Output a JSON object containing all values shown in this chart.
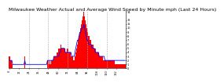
{
  "title": "Milwaukee Weather Actual and Average Wind Speed by Minute mph (Last 24 Hours)",
  "ylim": [
    0,
    14
  ],
  "bar_color": "#ff0000",
  "line_color": "#0000ff",
  "background_color": "#ffffff",
  "plot_bg_color": "#ffffff",
  "n_points": 144,
  "actual_wind": [
    3,
    2,
    2,
    1,
    0,
    0,
    0,
    0,
    0,
    0,
    0,
    0,
    0,
    0,
    0,
    0,
    0,
    0,
    0,
    3,
    0,
    0,
    0,
    0,
    0,
    0,
    0,
    0,
    0,
    0,
    0,
    0,
    0,
    0,
    0,
    0,
    0,
    0,
    0,
    0,
    0,
    0,
    0,
    0,
    0,
    0,
    0,
    2,
    2,
    1,
    2,
    1,
    2,
    2,
    2,
    3,
    3,
    3,
    3,
    4,
    4,
    5,
    5,
    5,
    6,
    5,
    5,
    5,
    5,
    4,
    4,
    5,
    5,
    4,
    4,
    4,
    3,
    3,
    3,
    2,
    2,
    3,
    4,
    5,
    6,
    7,
    8,
    9,
    10,
    11,
    12,
    13,
    14,
    13,
    12,
    11,
    10,
    9,
    8,
    8,
    7,
    7,
    6,
    6,
    5,
    5,
    5,
    4,
    4,
    4,
    4,
    3,
    3,
    3,
    3,
    3,
    2,
    2,
    2,
    2,
    2,
    2,
    2,
    2,
    2,
    2,
    2,
    2,
    2,
    2,
    2,
    1,
    1,
    1,
    1,
    1,
    1,
    1,
    1,
    1,
    1,
    1,
    1,
    1
  ],
  "avg_wind": [
    2,
    2,
    2,
    2,
    1,
    1,
    1,
    1,
    1,
    1,
    1,
    1,
    1,
    1,
    1,
    1,
    1,
    1,
    1,
    2,
    1,
    1,
    1,
    1,
    1,
    1,
    1,
    1,
    1,
    1,
    1,
    1,
    1,
    1,
    1,
    1,
    1,
    1,
    1,
    1,
    1,
    1,
    1,
    1,
    1,
    1,
    1,
    2,
    2,
    2,
    2,
    2,
    2,
    2,
    2,
    3,
    3,
    3,
    3,
    3,
    3,
    3,
    4,
    4,
    5,
    5,
    5,
    5,
    5,
    4,
    4,
    4,
    4,
    4,
    4,
    4,
    4,
    3,
    3,
    3,
    3,
    4,
    5,
    6,
    7,
    7,
    8,
    9,
    9,
    10,
    10,
    10,
    11,
    10,
    9,
    8,
    7,
    7,
    6,
    6,
    6,
    6,
    5,
    5,
    5,
    5,
    4,
    4,
    4,
    4,
    4,
    3,
    3,
    3,
    3,
    3,
    3,
    3,
    2,
    2,
    2,
    2,
    2,
    2,
    2,
    2,
    2,
    2,
    2,
    2,
    2,
    2,
    2,
    2,
    2,
    2,
    2,
    2,
    2,
    2,
    2,
    2,
    2,
    2
  ],
  "vline_positions": [
    24,
    48,
    72,
    96,
    120
  ],
  "grid_color": "#aaaaaa",
  "title_fontsize": 4.5,
  "tick_fontsize": 3.5
}
